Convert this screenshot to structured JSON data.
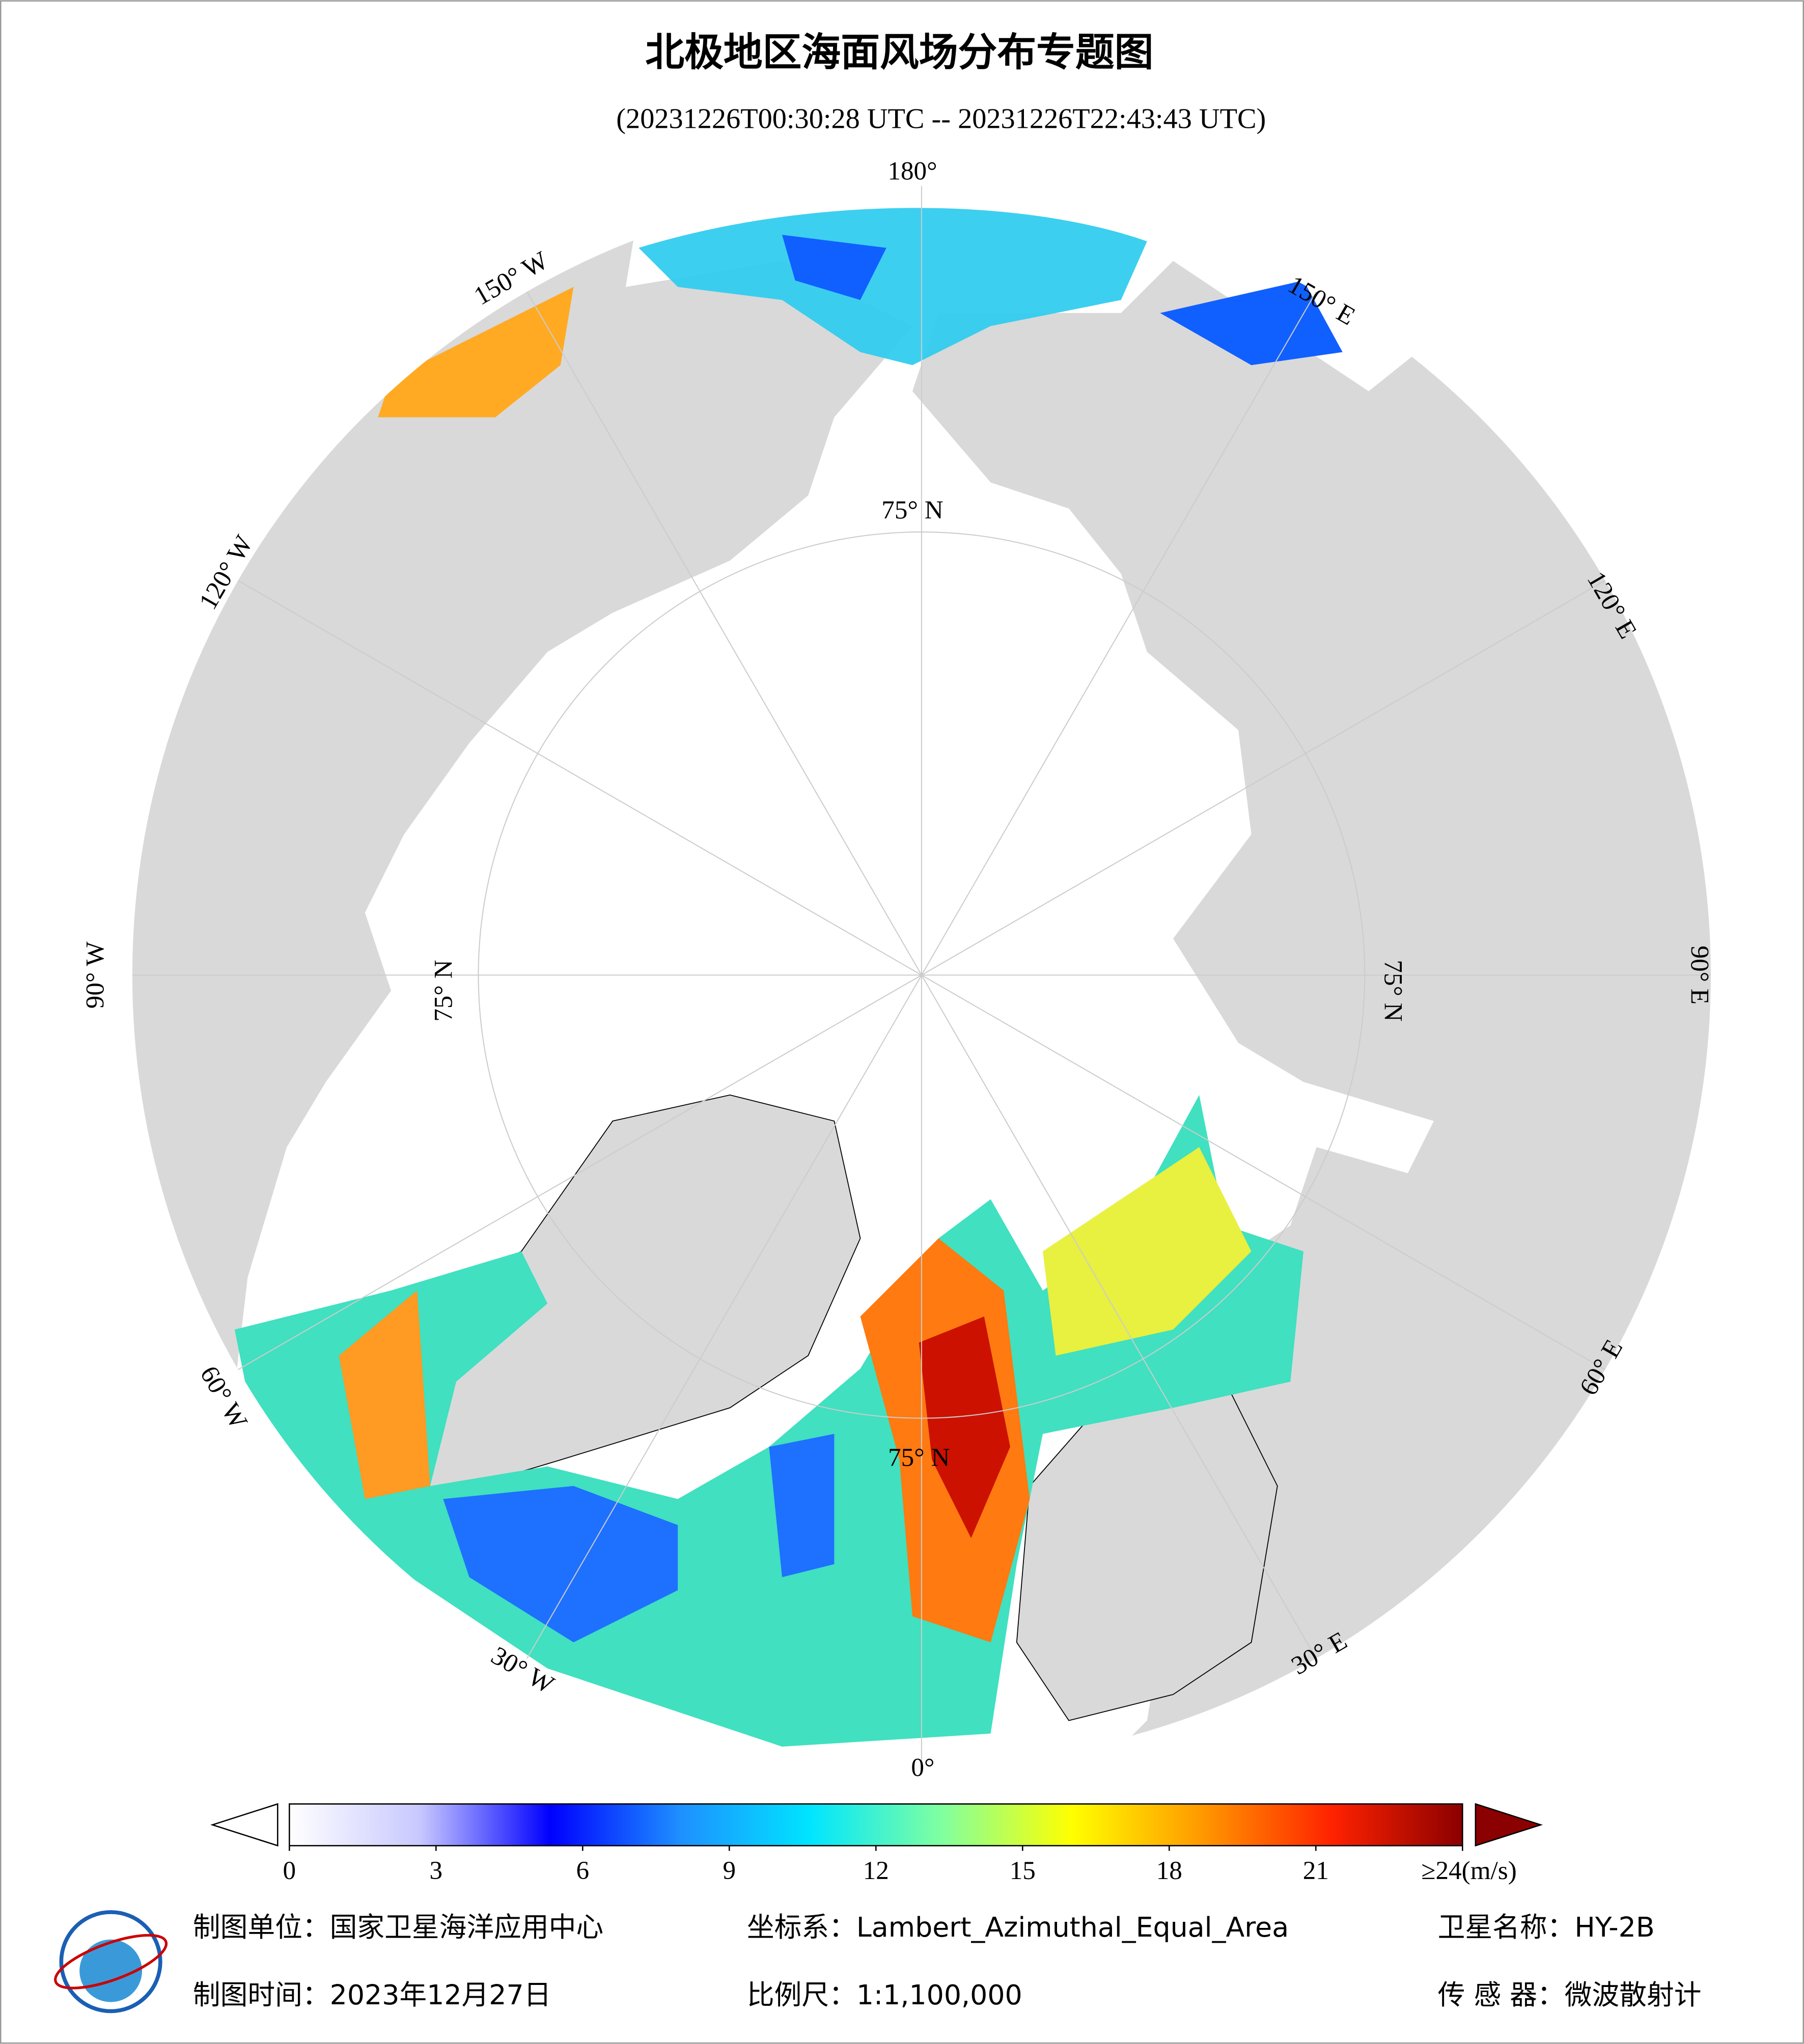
{
  "header": {
    "title": "北极地区海面风场分布专题图",
    "subtitle": "(20231226T00:30:28 UTC -- 20231226T22:43:43 UTC)"
  },
  "map": {
    "lon_labels": [
      "180°",
      "150° W",
      "120° W",
      "90° W",
      "60° W",
      "30° W",
      "0°",
      "30° E",
      "60° E",
      "90° E",
      "120° E",
      "150° E"
    ],
    "lat_labels": [
      "75° N",
      "75° N",
      "75° N",
      "75° N"
    ]
  },
  "colorbar": {
    "range": [
      0,
      24
    ],
    "ticks": [
      0,
      3,
      6,
      9,
      12,
      15,
      18,
      21,
      {
        "value": 24,
        "label": "≥24(m/s)"
      }
    ],
    "colors": [
      "#ffffff",
      "#c8c8ff",
      "#0000ff",
      "#1e90ff",
      "#00e5ff",
      "#80ffa0",
      "#ffff00",
      "#ff9900",
      "#ff2200",
      "#8b0000"
    ]
  },
  "footer": {
    "unit": "制图单位：国家卫星海洋应用中心",
    "crs": "坐标系：Lambert_Azimuthal_Equal_Area",
    "satellite": "卫星名称：HY-2B",
    "date": "制图时间：2023年12月27日",
    "scale": "比例尺：1:1,100,000",
    "sensor": "传 感 器：微波散射计"
  }
}
